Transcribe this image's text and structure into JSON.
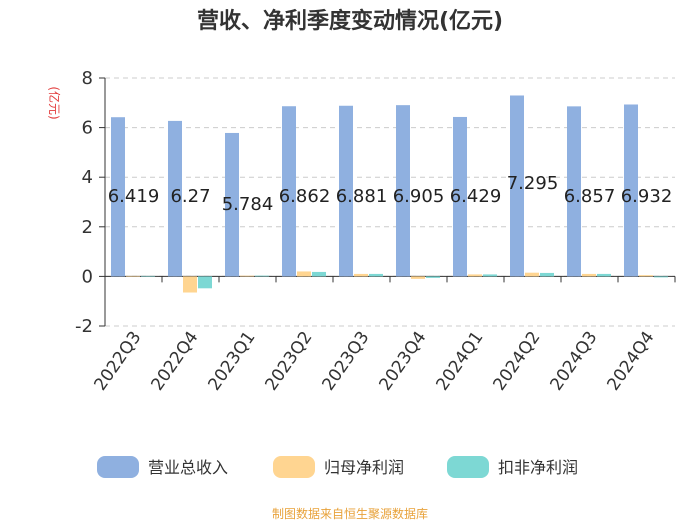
{
  "title": "营收、净利季度变动情况(亿元)",
  "source_note": "制图数据来自恒生聚源数据库",
  "colors": {
    "revenue": "#8fb0e0",
    "net_profit": "#ffd591",
    "deducted_profit": "#7dd8d4",
    "grid": "#cccccc",
    "axis": "#333333",
    "unit": "#e23b3b",
    "source": "#e8a23a"
  },
  "chart_data": {
    "type": "bar",
    "title": "营收、净利季度变动情况(亿元)",
    "ylabel": "(亿元)",
    "xlabel": "",
    "ylim": [
      -2,
      8
    ],
    "yticks": [
      -2,
      0,
      2,
      4,
      6,
      8
    ],
    "grid": true,
    "legend_position": "bottom",
    "categories": [
      "2022Q3",
      "2022Q4",
      "2023Q1",
      "2023Q2",
      "2023Q3",
      "2023Q4",
      "2024Q1",
      "2024Q2",
      "2024Q3",
      "2024Q4"
    ],
    "series": [
      {
        "name": "营业总收入",
        "values": [
          6.419,
          6.27,
          5.784,
          6.862,
          6.881,
          6.905,
          6.429,
          7.295,
          6.857,
          6.932
        ]
      },
      {
        "name": "归母净利润",
        "values": [
          0.02,
          -0.65,
          0.03,
          0.2,
          0.1,
          -0.1,
          0.08,
          0.15,
          0.1,
          0.05
        ]
      },
      {
        "name": "扣非净利润",
        "values": [
          0.02,
          -0.48,
          0.03,
          0.18,
          0.1,
          -0.06,
          0.08,
          0.14,
          0.1,
          -0.04
        ]
      }
    ],
    "data_labels": [
      "6.419",
      "6.27",
      "5.784",
      "6.862",
      "6.881",
      "6.905",
      "6.429",
      "7.295",
      "6.857",
      "6.932"
    ]
  }
}
